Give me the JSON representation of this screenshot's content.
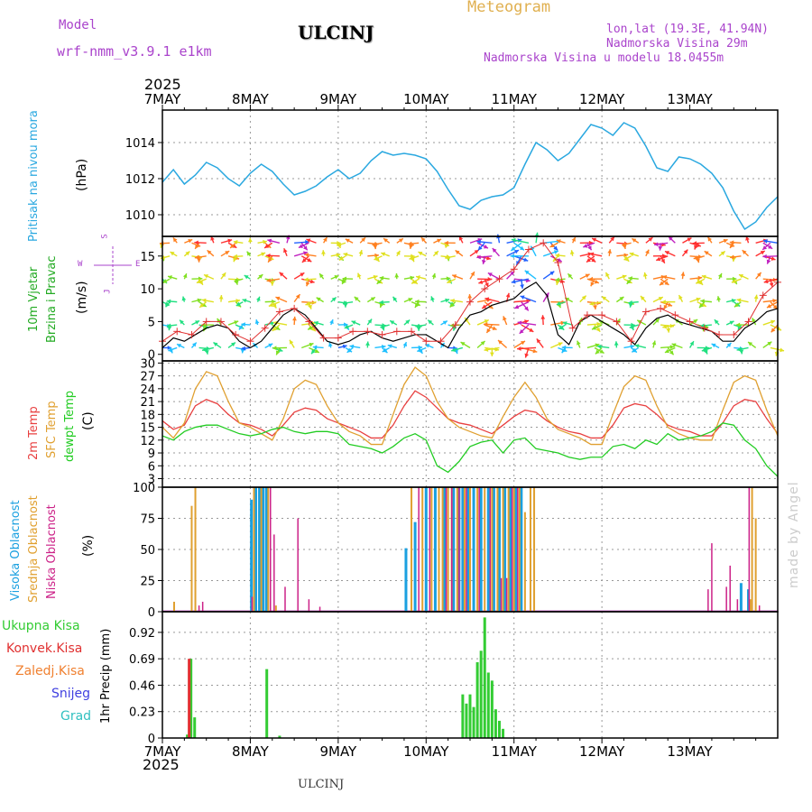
{
  "header": {
    "model_label": "Model",
    "model_name": "wrf-nmm_v3.9.1  e1km",
    "station": "ULCINJ",
    "meteogram": "Meteogram",
    "lonlat": "lon,lat (19.3E, 41.94N)",
    "altitude": "Nadmorska Visina 29m",
    "model_altitude": "Nadmorska Visina u modelu 18.0455m",
    "footer_station": "ULCINJ",
    "credit": "made by Angel"
  },
  "time_axis": {
    "year": "2025",
    "labels": [
      "7MAY",
      "8MAY",
      "9MAY",
      "10MAY",
      "11MAY",
      "12MAY",
      "13MAY"
    ]
  },
  "colors": {
    "pressure": "#2aa8e0",
    "temp2m": "#e84040",
    "sfc": "#e0a030",
    "dewpoint": "#22cc22",
    "high_cloud": "#1aa0e0",
    "mid_cloud": "#e0a030",
    "low_cloud": "#cc2288",
    "total_precip": "#33cc33",
    "convective": "#e03030",
    "frozen": "#f08030",
    "snow": "#4040e0",
    "hail": "#30c0c0",
    "wind_label": "#22aa22",
    "compass": "#aa44cc"
  },
  "chart_data": [
    {
      "type": "line",
      "panel": "pressure",
      "label": "Pritisak na nivou mora",
      "ylabel": "(hPa)",
      "yticks": [
        1010,
        1012,
        1014
      ],
      "ylim": [
        1008.8,
        1015.8
      ],
      "x": [
        0,
        3,
        6,
        9,
        12,
        15,
        18,
        21,
        24,
        27,
        30,
        33,
        36,
        39,
        42,
        45,
        48,
        51,
        54,
        57,
        60,
        63,
        66,
        69,
        72,
        75,
        78,
        81,
        84,
        87,
        90,
        93,
        96,
        99,
        102,
        105,
        108,
        111,
        114,
        117,
        120,
        123,
        126,
        129,
        132,
        135,
        138,
        141,
        144
      ],
      "values": [
        1011.8,
        1012.5,
        1011.7,
        1012.2,
        1012.9,
        1012.6,
        1012.0,
        1011.6,
        1012.3,
        1012.8,
        1012.4,
        1011.7,
        1011.1,
        1011.3,
        1011.6,
        1012.1,
        1012.5,
        1012.0,
        1012.3,
        1013.0,
        1013.5,
        1013.3,
        1013.4,
        1013.3,
        1013.1,
        1012.4,
        1011.4,
        1010.5,
        1010.3,
        1010.8,
        1011.0,
        1011.1,
        1011.5,
        1012.8,
        1014.0,
        1013.6,
        1013.0,
        1013.4,
        1014.2,
        1015.0,
        1014.8,
        1014.4,
        1015.1,
        1014.8,
        1013.8,
        1012.6,
        1012.4,
        1013.2,
        1013.1
      ],
      "x2": [
        144,
        147,
        150,
        153,
        156,
        159,
        162,
        165,
        168
      ],
      "values2": [
        1013.1,
        1012.8,
        1012.3,
        1011.5,
        1010.2,
        1009.2,
        1009.6,
        1010.4,
        1011.0
      ]
    },
    {
      "type": "line",
      "panel": "wind",
      "label1": "10m Vjetar",
      "label2": "Brzina i Pravac",
      "ylabel": "(m/s)",
      "yticks": [
        0,
        5,
        10,
        15
      ],
      "ylim": [
        -1,
        18
      ],
      "compass": {
        "n": "S",
        "w": "W",
        "e": "E",
        "s": "J"
      },
      "x": [
        0,
        3,
        6,
        9,
        12,
        15,
        18,
        21,
        24,
        27,
        30,
        33,
        36,
        39,
        42,
        45,
        48,
        51,
        54,
        57,
        60,
        63,
        66,
        69,
        72,
        75,
        78,
        81,
        84,
        87,
        90,
        93,
        96,
        99,
        102,
        105,
        108,
        111,
        114,
        117,
        120,
        123,
        126,
        129,
        132,
        135,
        138,
        141,
        144,
        147,
        150,
        153,
        156,
        159,
        162,
        165,
        168
      ],
      "values": [
        1.0,
        2.5,
        2.0,
        3.0,
        4.0,
        4.5,
        4.0,
        2.0,
        1.0,
        2.0,
        4.0,
        6.0,
        7.0,
        6.0,
        4.0,
        2.0,
        1.5,
        2.0,
        3.0,
        3.5,
        2.5,
        2.0,
        2.5,
        3.0,
        3.0,
        2.0,
        1.0,
        4.0,
        6.0,
        6.5,
        7.5,
        8.0,
        8.5,
        10.0,
        11.0,
        9.0,
        3.0,
        1.5,
        5.0,
        6.0,
        5.0,
        4.0,
        3.0,
        1.5,
        4.0,
        5.5,
        6.0,
        5.0,
        4.5,
        4.0,
        3.5,
        2.0,
        2.0,
        4.0,
        5.0,
        6.5,
        7.0
      ],
      "gust_x": [
        0,
        4,
        8,
        12,
        16,
        20,
        24,
        28,
        32,
        36,
        40,
        44,
        48,
        52,
        56,
        60,
        64,
        68,
        72,
        76,
        80,
        84,
        88,
        92,
        96,
        100,
        104,
        108,
        112,
        116,
        120,
        124,
        128,
        132,
        136,
        140,
        144,
        148,
        152,
        156,
        160,
        164,
        168
      ],
      "gust": [
        2.0,
        3.5,
        3.0,
        5.0,
        5.0,
        3.0,
        2.0,
        4.0,
        6.5,
        7.0,
        5.0,
        2.5,
        2.5,
        3.5,
        3.5,
        3.0,
        3.5,
        3.5,
        2.0,
        2.0,
        4.5,
        8.0,
        10.0,
        11.5,
        13.0,
        16.0,
        17.0,
        14.0,
        4.0,
        6.0,
        6.0,
        5.0,
        2.0,
        6.5,
        7.0,
        6.0,
        5.0,
        4.0,
        3.0,
        3.0,
        5.0,
        9.0,
        11.0
      ]
    },
    {
      "type": "line",
      "panel": "temperature",
      "label1": "2m Temp",
      "label2": "SFC Temp",
      "label3": "dewpt Temp",
      "ylabel": "(C)",
      "yticks": [
        3,
        6,
        9,
        12,
        15,
        18,
        21,
        24,
        27,
        30
      ],
      "ylim": [
        1,
        30.5
      ],
      "x": [
        0,
        3,
        6,
        9,
        12,
        15,
        18,
        21,
        24,
        27,
        30,
        33,
        36,
        39,
        42,
        45,
        48,
        51,
        54,
        57,
        60,
        63,
        66,
        69,
        72,
        75,
        78,
        81,
        84,
        87,
        90,
        93,
        96,
        99,
        102,
        105,
        108,
        111,
        114,
        117,
        120,
        123,
        126,
        129,
        132,
        135,
        138,
        141,
        144,
        147,
        150,
        153,
        156,
        159,
        162,
        165,
        168
      ],
      "series": [
        {
          "name": "2m Temp",
          "values": [
            16.5,
            14.5,
            15.5,
            20.0,
            21.5,
            20.5,
            18.0,
            16.0,
            15.5,
            14.5,
            13.0,
            15.5,
            18.5,
            19.5,
            19.0,
            17.0,
            16.0,
            15.0,
            14.0,
            12.5,
            12.5,
            15.5,
            20.0,
            23.5,
            22.0,
            19.5,
            17.0,
            16.0,
            15.5,
            14.5,
            13.5,
            15.5,
            17.5,
            19.0,
            18.5,
            16.5,
            15.0,
            14.0,
            13.5,
            12.5,
            12.5,
            15.5,
            19.5,
            20.5,
            20.0,
            18.0,
            15.5,
            14.5,
            14.0,
            13.0,
            13.0,
            16.0,
            20.0,
            21.5,
            21.0,
            17.0,
            13.5
          ]
        },
        {
          "name": "SFC Temp",
          "values": [
            15.0,
            12.5,
            16.0,
            24.0,
            28.0,
            27.0,
            21.0,
            16.0,
            15.0,
            13.5,
            12.0,
            17.0,
            24.0,
            26.0,
            25.0,
            20.0,
            16.0,
            14.0,
            13.0,
            11.0,
            11.0,
            18.0,
            25.0,
            29.0,
            27.0,
            21.0,
            17.0,
            15.0,
            14.0,
            13.0,
            12.5,
            17.5,
            22.0,
            25.5,
            22.0,
            17.0,
            14.5,
            13.5,
            12.5,
            11.0,
            11.0,
            18.0,
            24.5,
            27.0,
            26.0,
            20.0,
            15.0,
            13.5,
            12.5,
            12.0,
            12.0,
            19.0,
            25.5,
            27.0,
            26.0,
            19.0,
            13.0
          ]
        },
        {
          "name": "dewpt Temp",
          "values": [
            13.0,
            12.0,
            14.0,
            15.0,
            15.5,
            15.5,
            14.5,
            13.5,
            13.0,
            13.5,
            14.5,
            15.0,
            14.0,
            13.5,
            14.0,
            14.0,
            13.5,
            11.0,
            10.5,
            10.0,
            9.0,
            10.5,
            12.5,
            13.5,
            12.0,
            6.0,
            4.5,
            7.0,
            10.5,
            11.5,
            12.0,
            9.0,
            12.0,
            12.5,
            10.0,
            9.5,
            9.0,
            8.0,
            7.5,
            8.0,
            8.0,
            10.5,
            11.0,
            10.0,
            12.0,
            11.0,
            13.5,
            12.0,
            12.5,
            13.0,
            14.0,
            16.0,
            15.5,
            12.0,
            10.0,
            6.0,
            3.5
          ]
        }
      ]
    },
    {
      "type": "bar",
      "panel": "clouds",
      "label1": "Visoka Oblacnost",
      "label2": "Srednja Oblacnost",
      "label3": "Niska Oblacnost",
      "ylabel": "(%)",
      "yticks": [
        0,
        25,
        50,
        75,
        100
      ],
      "ylim": [
        0,
        100
      ],
      "series": [
        {
          "name": "Visoka Oblacnost",
          "x": [
            24.3,
            25.5,
            26.5,
            27.5,
            28.4,
            66.5,
            69.0,
            72.0,
            74.5,
            77.0,
            79.5,
            81.0,
            82.0,
            83.5,
            85.0,
            87.0,
            89.0,
            90.5,
            92.0,
            93.5,
            95.0,
            96.5,
            98.0,
            158.0,
            160.0
          ],
          "values": [
            90,
            100,
            100,
            100,
            100,
            51,
            72,
            100,
            100,
            100,
            100,
            100,
            100,
            100,
            100,
            100,
            100,
            100,
            100,
            100,
            100,
            100,
            100,
            23,
            18
          ]
        },
        {
          "name": "Srednja Oblacnost",
          "x": [
            3.2,
            8.0,
            9.0,
            25.0,
            27.0,
            28.9,
            31.0,
            68.0,
            71.0,
            73.5,
            75.5,
            76.5,
            78.0,
            79.0,
            80.5,
            82.5,
            84.0,
            86.0,
            88.0,
            90.0,
            91.5,
            93.0,
            94.5,
            96.0,
            97.5,
            99.0,
            100.5,
            101.5,
            160.5,
            161.0,
            162.0
          ],
          "values": [
            8,
            85,
            100,
            100,
            100,
            100,
            5,
            100,
            100,
            100,
            100,
            100,
            100,
            100,
            100,
            100,
            100,
            100,
            100,
            100,
            100,
            100,
            100,
            100,
            100,
            80,
            100,
            100,
            10,
            100,
            75
          ]
        },
        {
          "name": "Niska Oblacnost",
          "x": [
            10.0,
            11.0,
            24.5,
            29.5,
            30.5,
            33.5,
            37.0,
            40.0,
            43.0,
            70.0,
            73.0,
            77.5,
            79.0,
            81.0,
            83.0,
            86.5,
            89.5,
            92.5,
            94.0,
            95.5,
            97.0,
            149.0,
            150.0,
            154.0,
            155.0,
            157.0,
            160.2,
            163.0
          ],
          "values": [
            5,
            8,
            12,
            100,
            62,
            20,
            75,
            10,
            4,
            100,
            100,
            100,
            100,
            100,
            100,
            100,
            100,
            27,
            27,
            100,
            100,
            18,
            55,
            20,
            37,
            10,
            100,
            5
          ]
        }
      ]
    },
    {
      "type": "bar",
      "panel": "precip",
      "legend": [
        "Ukupna Kisa",
        "Konvek.Kisa",
        "Zaledj.Kisa",
        "Snijeg",
        "Grad"
      ],
      "ylabel": "1hr Precip (mm)",
      "yticks": [
        0,
        0.23,
        0.46,
        0.69,
        0.92
      ],
      "ylim": [
        0,
        1.1
      ],
      "series": [
        {
          "name": "Ukupna Kisa",
          "x": [
            6.8,
            7.8,
            8.8,
            28.5,
            32.0,
            82.0,
            83.0,
            84.0,
            85.0,
            86.0,
            87.0,
            88.0,
            89.0,
            90.0,
            91.0,
            92.0,
            93.0
          ],
          "values": [
            0.03,
            0.69,
            0.18,
            0.6,
            0.02,
            0.38,
            0.3,
            0.38,
            0.27,
            0.66,
            0.76,
            1.05,
            0.57,
            0.5,
            0.25,
            0.15,
            0.08
          ]
        },
        {
          "name": "Konvek.Kisa",
          "x": [
            7.3
          ],
          "values": [
            0.69
          ]
        }
      ]
    }
  ]
}
